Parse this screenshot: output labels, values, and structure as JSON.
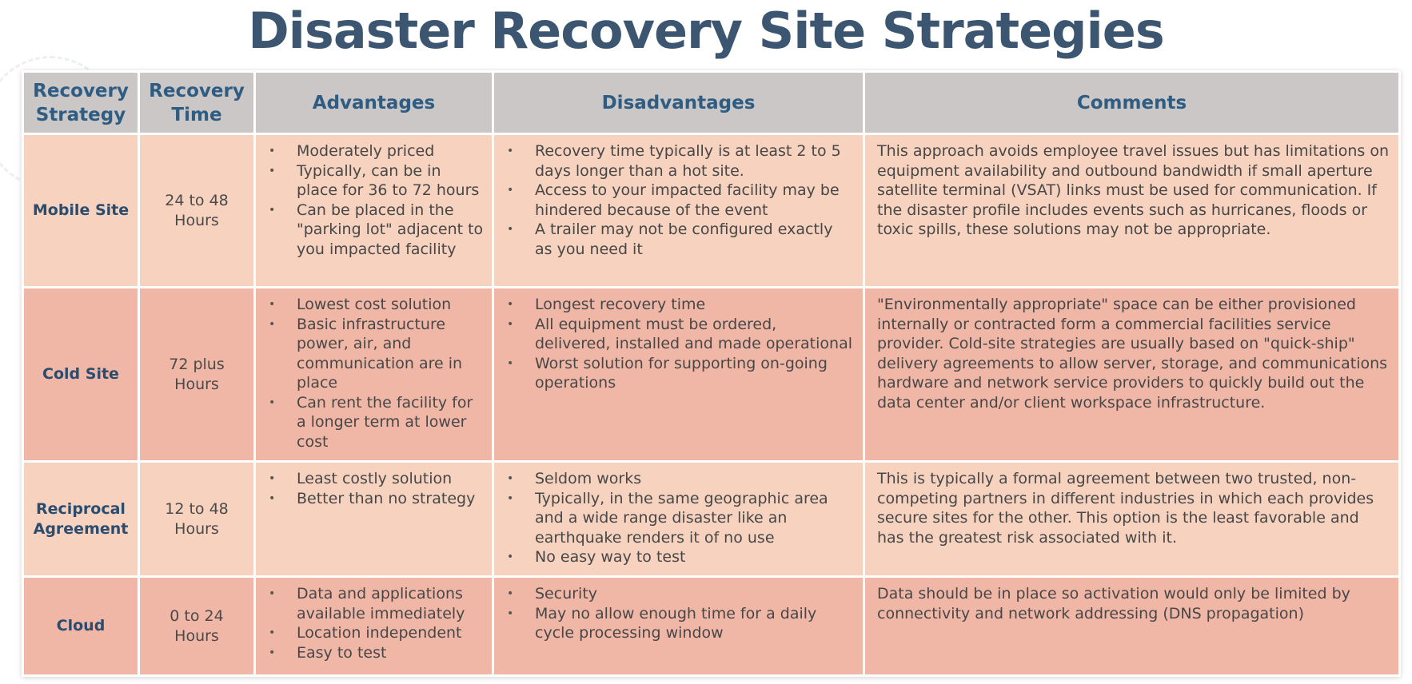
{
  "title": "Disaster Recovery Site Strategies",
  "colors": {
    "title": "#3c5570",
    "header_bg": "#cac7c6",
    "header_text": "#2f5c82",
    "row_light": "#f6d2bf",
    "row_dark": "#f0b7a7",
    "strategy_text": "#2a4c6e"
  },
  "headers": {
    "strategy": "Recovery Strategy",
    "time": "Recovery Time",
    "advantages": "Advantages",
    "disadvantages": "Disadvantages",
    "comments": "Comments"
  },
  "rows": [
    {
      "strategy": "Mobile Site",
      "time": "24 to 48 Hours",
      "advantages": [
        "Moderately priced",
        "Typically, can be in place for 36 to 72 hours",
        "Can be placed in the \"parking lot\" adjacent to you impacted facility"
      ],
      "disadvantages": [
        "Recovery time typically is at least 2 to 5 days longer than a hot site.",
        "Access to your impacted facility may be hindered because of the event",
        "A trailer may not be configured exactly as you need it"
      ],
      "comments": "This approach avoids employee travel issues but has limitations on equipment availability and outbound bandwidth if small aperture satellite terminal (VSAT) links must be used for communication. If the disaster profile includes events such as hurricanes, floods or toxic spills, these solutions may not be appropriate."
    },
    {
      "strategy": "Cold Site",
      "time": "72 plus Hours",
      "advantages": [
        "Lowest cost solution",
        "Basic infrastructure power, air, and communication are in place",
        "Can rent the facility for a longer term at lower cost"
      ],
      "disadvantages": [
        "Longest recovery time",
        "All equipment must be ordered, delivered, installed and made operational",
        "Worst solution for supporting on-going operations"
      ],
      "comments": "\"Environmentally appropriate\" space can be either provisioned internally or contracted form a commercial facilities service provider. Cold-site strategies are usually based on \"quick-ship\" delivery agreements to allow server, storage, and communications hardware and network service providers to quickly build out the data center and/or client workspace infrastructure."
    },
    {
      "strategy": "Reciprocal Agreement",
      "time": "12 to 48 Hours",
      "advantages": [
        "Least costly solution",
        "Better than no strategy"
      ],
      "disadvantages": [
        "Seldom works",
        "Typically, in the same geographic area and a wide range disaster like an earthquake renders it of no use",
        "No easy way to test"
      ],
      "comments": "This is typically a formal agreement between two trusted, non-competing partners in different industries in which each provides secure sites for the other. This option is the least favorable and has the greatest risk associated with it."
    },
    {
      "strategy": "Cloud",
      "time": "0 to 24 Hours",
      "advantages": [
        "Data and applications available immediately",
        "Location independent",
        "Easy to test"
      ],
      "disadvantages": [
        "Security",
        "May no allow enough time for a daily cycle processing window"
      ],
      "comments": "Data should be in place so activation would only be limited by connectivity and network addressing (DNS propagation)"
    }
  ]
}
